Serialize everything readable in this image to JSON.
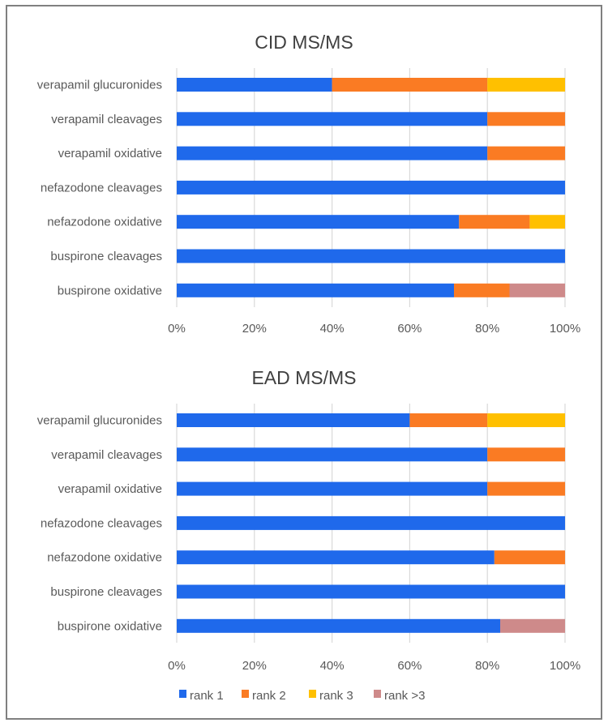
{
  "chart_data": [
    {
      "type": "bar",
      "orientation": "horizontal",
      "stacked": "percent",
      "title": "CID MS/MS",
      "categories": [
        "verapamil  glucuronides",
        "verapamil  cleavages",
        "verapamil  oxidative",
        "nefazodone  cleavages",
        "nefazodone  oxidative",
        "buspirone  cleavages",
        "buspirone  oxidative"
      ],
      "series": [
        {
          "name": "rank 1",
          "values": [
            40,
            80,
            80,
            100,
            72.7,
            100,
            71.4
          ]
        },
        {
          "name": "rank 2",
          "values": [
            40,
            20,
            20,
            0,
            18.2,
            0,
            14.3
          ]
        },
        {
          "name": "rank  3",
          "values": [
            20,
            0,
            0,
            0,
            9.1,
            0,
            0
          ]
        },
        {
          "name": "rank >3",
          "values": [
            0,
            0,
            0,
            0,
            0,
            0,
            14.3
          ]
        }
      ],
      "xlim": [
        0,
        100
      ],
      "xticks": [
        "0%",
        "20%",
        "40%",
        "60%",
        "80%",
        "100%"
      ],
      "grid": "vertical"
    },
    {
      "type": "bar",
      "orientation": "horizontal",
      "stacked": "percent",
      "title": "EAD MS/MS",
      "categories": [
        "verapamil  glucuronides",
        "verapamil  cleavages",
        "verapamil  oxidative",
        "nefazodone  cleavages",
        "nefazodone  oxidative",
        "buspirone  cleavages",
        "buspirone  oxidative"
      ],
      "series": [
        {
          "name": "rank 1",
          "values": [
            60,
            80,
            80,
            100,
            81.8,
            100,
            83.3
          ]
        },
        {
          "name": "rank 2",
          "values": [
            20,
            20,
            20,
            0,
            18.2,
            0,
            0
          ]
        },
        {
          "name": "rank  3",
          "values": [
            20,
            0,
            0,
            0,
            0,
            0,
            0
          ]
        },
        {
          "name": "rank >3",
          "values": [
            0,
            0,
            0,
            0,
            0,
            0,
            16.7
          ]
        }
      ],
      "xlim": [
        0,
        100
      ],
      "xticks": [
        "0%",
        "20%",
        "40%",
        "60%",
        "80%",
        "100%"
      ],
      "grid": "vertical"
    }
  ],
  "legend": {
    "position": "bottom",
    "items": [
      {
        "label": "rank 1",
        "color": "#1F69EB"
      },
      {
        "label": "rank 2",
        "color": "#FA7B23"
      },
      {
        "label": "rank  3",
        "color": "#FFC000"
      },
      {
        "label": "rank >3",
        "color": "#CE8A8A"
      }
    ]
  }
}
